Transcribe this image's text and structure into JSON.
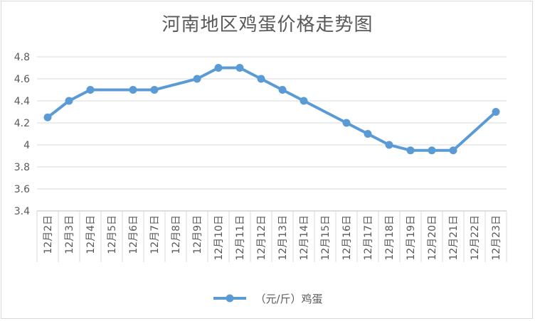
{
  "chart_data": {
    "type": "line",
    "title": "河南地区鸡蛋价格走势图",
    "xlabel": "",
    "ylabel": "",
    "categories": [
      "12月2日",
      "12月3日",
      "12月4日",
      "12月5日",
      "12月6日",
      "12月7日",
      "12月8日",
      "12月9日",
      "12月10日",
      "12月11日",
      "12月12日",
      "12月13日",
      "12月14日",
      "12月15日",
      "12月16日",
      "12月17日",
      "12月18日",
      "12月19日",
      "12月20日",
      "12月21日",
      "12月22日",
      "12月23日"
    ],
    "series": [
      {
        "name": "（元/斤）鸡蛋",
        "color": "#5b9bd5",
        "values": [
          4.25,
          4.4,
          4.5,
          null,
          4.5,
          4.5,
          null,
          4.6,
          4.7,
          4.7,
          4.6,
          4.5,
          4.4,
          null,
          4.2,
          4.1,
          4.0,
          3.95,
          3.95,
          3.95,
          null,
          4.3
        ]
      }
    ],
    "ylim": [
      3.4,
      4.8
    ],
    "yticks": [
      "3.4",
      "3.6",
      "3.8",
      "4",
      "4.2",
      "4.4",
      "4.6",
      "4.8"
    ],
    "grid": true,
    "legend": "bottom"
  }
}
